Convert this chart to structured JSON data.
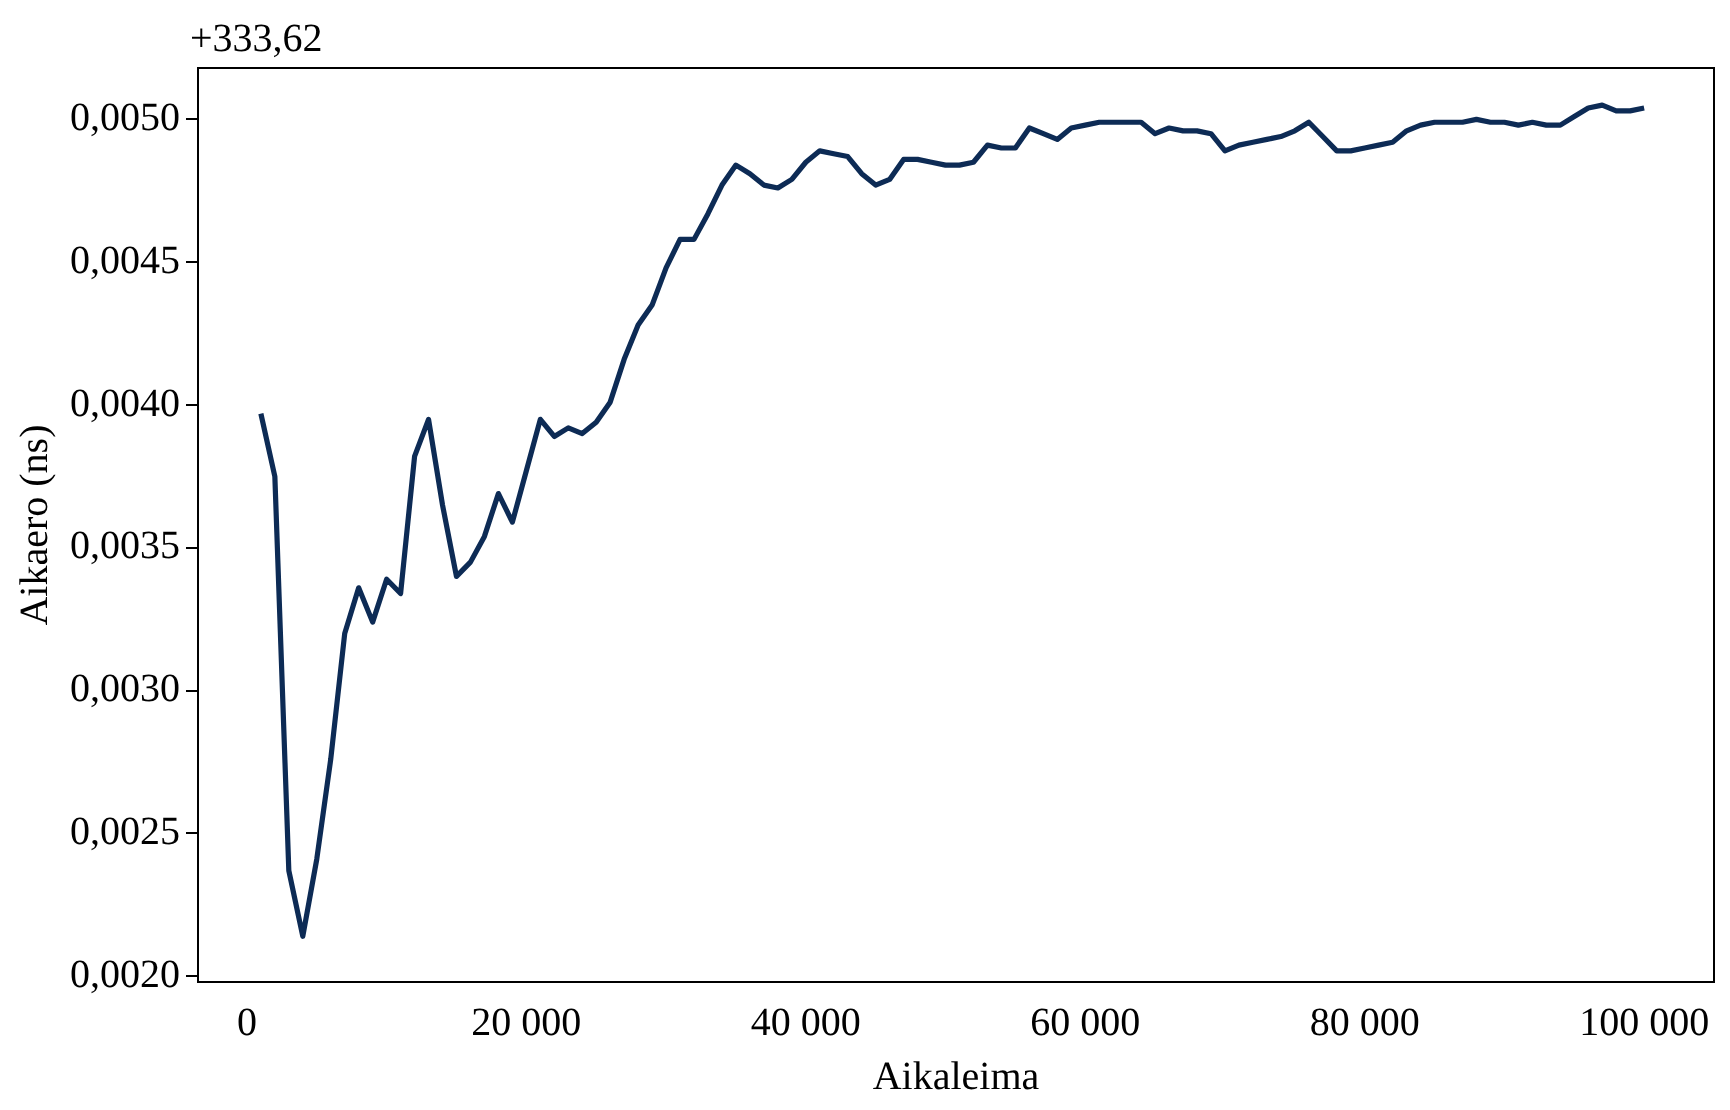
{
  "chart_data": {
    "type": "line",
    "xlabel": "Aikaleima",
    "ylabel": "Aikaero (ns)",
    "annotations": [
      "+333,62"
    ],
    "x": [
      1000,
      2000,
      3000,
      4000,
      5000,
      6000,
      7000,
      8000,
      9000,
      10000,
      11000,
      12000,
      13000,
      14000,
      15000,
      16000,
      17000,
      18000,
      19000,
      20000,
      21000,
      22000,
      23000,
      24000,
      25000,
      26000,
      27000,
      28000,
      29000,
      30000,
      31000,
      32000,
      33000,
      34000,
      35000,
      36000,
      37000,
      38000,
      39000,
      40000,
      41000,
      42000,
      43000,
      44000,
      45000,
      46000,
      47000,
      48000,
      49000,
      50000,
      51000,
      52000,
      53000,
      54000,
      55000,
      56000,
      57000,
      58000,
      59000,
      60000,
      61000,
      62000,
      63000,
      64000,
      65000,
      66000,
      67000,
      68000,
      69000,
      70000,
      71000,
      72000,
      73000,
      74000,
      75000,
      76000,
      77000,
      78000,
      79000,
      80000,
      81000,
      82000,
      83000,
      84000,
      85000,
      86000,
      87000,
      88000,
      89000,
      90000,
      91000,
      92000,
      93000,
      94000,
      95000,
      96000,
      97000,
      98000,
      99000,
      100000
    ],
    "series": [
      {
        "color": "#0d2b55",
        "values": [
          0.00397,
          0.00375,
          0.00237,
          0.00214,
          0.00241,
          0.00276,
          0.0032,
          0.00336,
          0.00324,
          0.00339,
          0.00334,
          0.00382,
          0.00395,
          0.00365,
          0.0034,
          0.00345,
          0.00354,
          0.00369,
          0.00359,
          0.00377,
          0.00395,
          0.00389,
          0.00392,
          0.0039,
          0.00394,
          0.00401,
          0.00416,
          0.00428,
          0.00435,
          0.00448,
          0.00458,
          0.00458,
          0.00467,
          0.00477,
          0.00484,
          0.00481,
          0.00477,
          0.00476,
          0.00479,
          0.00485,
          0.00489,
          0.00488,
          0.00487,
          0.00481,
          0.00477,
          0.00479,
          0.00486,
          0.00486,
          0.00485,
          0.00484,
          0.00484,
          0.00485,
          0.00491,
          0.0049,
          0.0049,
          0.00497,
          0.00495,
          0.00493,
          0.00497,
          0.00498,
          0.00499,
          0.00499,
          0.00499,
          0.00499,
          0.00495,
          0.00497,
          0.00496,
          0.00496,
          0.00495,
          0.00489,
          0.00491,
          0.00492,
          0.00493,
          0.00494,
          0.00496,
          0.00499,
          0.00494,
          0.00489,
          0.00489,
          0.0049,
          0.00491,
          0.00492,
          0.00496,
          0.00498,
          0.00499,
          0.00499,
          0.00499,
          0.005,
          0.00499,
          0.00499,
          0.00498,
          0.00499,
          0.00498,
          0.00498,
          0.00501,
          0.00504,
          0.00505,
          0.00503,
          0.00503,
          0.00504
        ]
      }
    ],
    "xlim": [
      -3500,
      105000
    ],
    "ylim": [
      0.00198,
      0.00518
    ],
    "xticks": [
      0,
      {
        "value": 20000,
        "label": "20 000"
      },
      {
        "value": 40000,
        "label": "40 000"
      },
      {
        "value": 60000,
        "label": "60 000"
      },
      {
        "value": 80000,
        "label": "80 000"
      },
      {
        "value": 100000,
        "label": "100 000"
      }
    ],
    "yticks": [
      {
        "value": 0.002,
        "label": "0,0020"
      },
      {
        "value": 0.0025,
        "label": "0,0025"
      },
      {
        "value": 0.003,
        "label": "0,0030"
      },
      {
        "value": 0.0035,
        "label": "0,0035"
      },
      {
        "value": 0.004,
        "label": "0,0040"
      },
      {
        "value": 0.0045,
        "label": "0,0045"
      },
      {
        "value": 0.005,
        "label": "0,0050"
      }
    ],
    "grid": false,
    "legend": false,
    "marker": "none",
    "line_style": "solid"
  }
}
